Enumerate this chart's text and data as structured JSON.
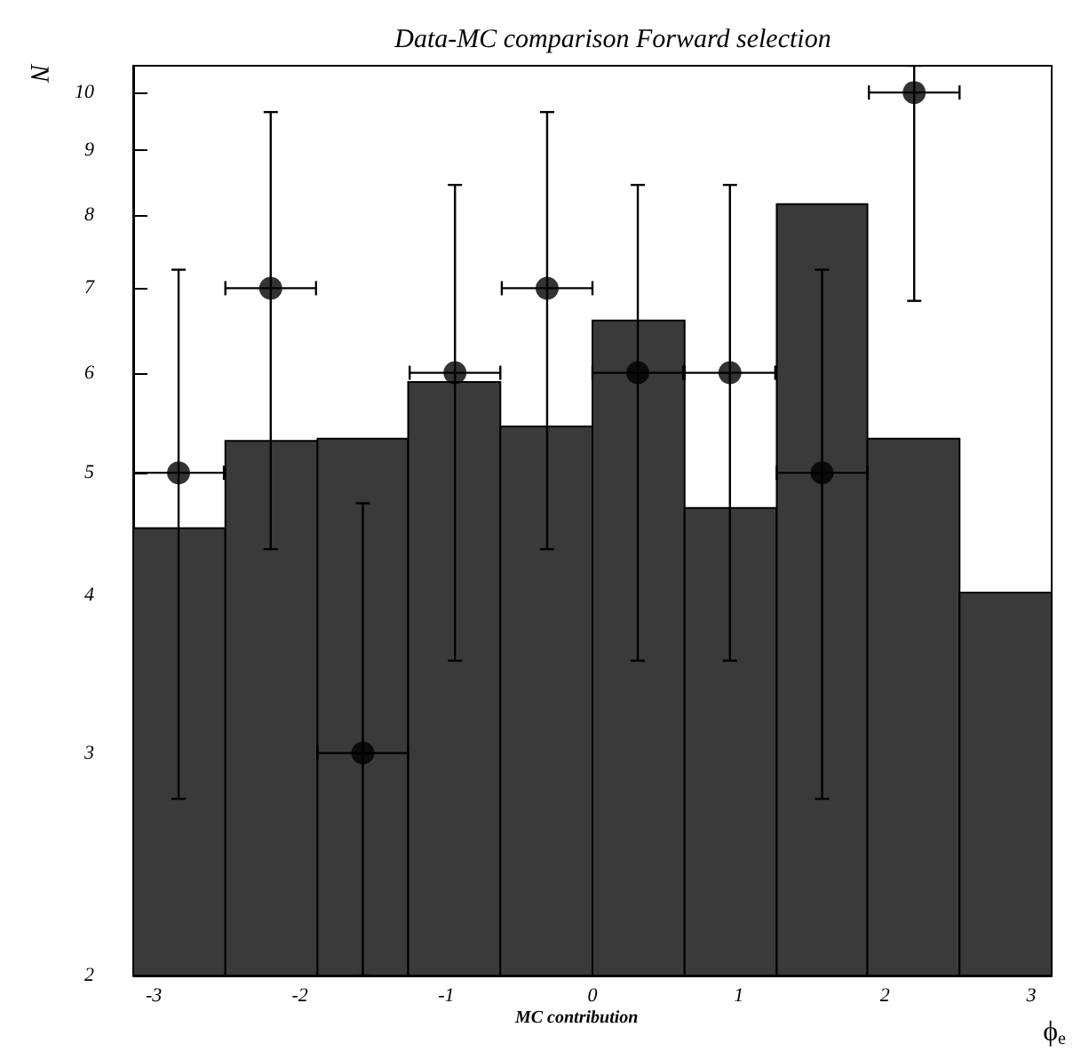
{
  "chart_data": {
    "type": "histogram",
    "title": "Data-MC comparison Forward selection",
    "xlabel": "ϕ$_{e}$",
    "ylabel": "N",
    "annotations": [
      "MC contribution"
    ],
    "log": "y",
    "xlim": [
      -3.14,
      3.14
    ],
    "xticks": [
      -3,
      -2,
      -1,
      0,
      1,
      2,
      3
    ],
    "ylim": [
      2,
      10.5
    ],
    "yticks": [
      2,
      3,
      4,
      5,
      6,
      7,
      8,
      9,
      10
    ],
    "series": [
      {
        "color": "#3a3a3a",
        "bins": [
          -3.14,
          -2.51,
          -1.88,
          -1.26,
          -0.63,
          0,
          0.63,
          1.26,
          1.88,
          2.51,
          3.14
        ],
        "values": [
          4.52,
          5.3,
          5.32,
          5.9,
          5.44,
          6.6,
          4.69,
          8.16,
          5.32,
          4.02
        ]
      },
      {
        "type": "scatter",
        "color": "#000000",
        "marker": "circle",
        "x": [
          -2.83,
          -2.2,
          -1.57,
          -0.94,
          -0.31,
          0.31,
          0.94,
          1.57,
          2.2
        ],
        "values": [
          5,
          7,
          3,
          6,
          7,
          6,
          6,
          5,
          10
        ],
        "errors": [
          [
            2.76,
            7.24
          ],
          [
            4.35,
            9.65
          ],
          [
            2,
            4.73
          ],
          [
            3.55,
            8.45
          ],
          [
            4.35,
            9.65
          ],
          [
            3.55,
            8.45
          ],
          [
            3.55,
            8.45
          ],
          [
            2.76,
            7.24
          ],
          [
            6.84,
            10.5
          ]
        ],
        "xerrors": [
          0.31,
          0.31,
          0.31,
          0.31,
          0.31,
          0.31,
          0.31,
          0.31,
          0.31
        ]
      }
    ]
  }
}
